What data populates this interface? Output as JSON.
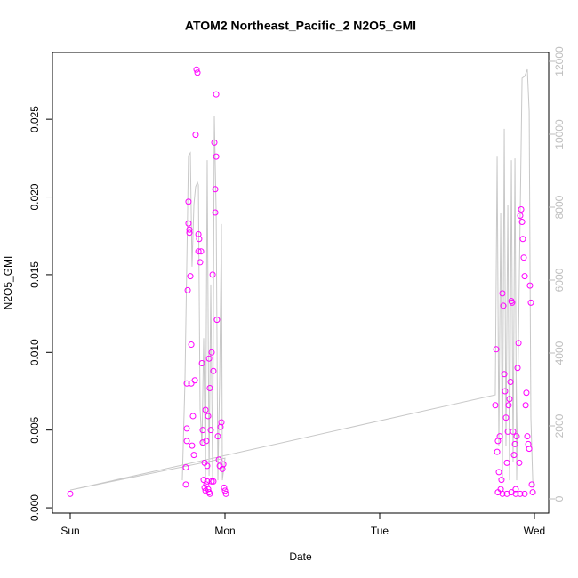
{
  "chart_data": {
    "type": "scatter",
    "title": "ATOM2 Northeast_Pacific_2 N2O5_GMI",
    "xlabel": "Date",
    "ylabel": "N2O5_GMI",
    "xlim": [
      -0.115,
      3.092
    ],
    "xticks": [
      {
        "value": 0,
        "label": "Sun"
      },
      {
        "value": 1,
        "label": "Mon"
      },
      {
        "value": 2,
        "label": "Tue"
      },
      {
        "value": 3,
        "label": "Wed"
      }
    ],
    "ylim": [
      -0.00034,
      0.0293
    ],
    "yticks": [
      {
        "value": 0,
        "label": "0.000"
      },
      {
        "value": 0.005,
        "label": "0.005"
      },
      {
        "value": 0.01,
        "label": "0.010"
      },
      {
        "value": 0.015,
        "label": "0.015"
      },
      {
        "value": 0.02,
        "label": "0.020"
      },
      {
        "value": 0.025,
        "label": "0.025"
      }
    ],
    "y2lim": [
      -390,
      12244
    ],
    "y2ticks": [
      0,
      2000,
      4000,
      6000,
      8000,
      10000,
      12000
    ],
    "y2color": "#bebebe",
    "series": [
      {
        "type": "scatter",
        "color": "#ff00ff",
        "x": [
          0,
          0.747,
          0.747,
          0.753,
          0.753,
          0.753,
          0.759,
          0.764,
          0.764,
          0.77,
          0.77,
          0.776,
          0.782,
          0.782,
          0.787,
          0.793,
          0.799,
          0.805,
          0.81,
          0.816,
          0.822,
          0.828,
          0.828,
          0.833,
          0.839,
          0.845,
          0.851,
          0.856,
          0.856,
          0.862,
          0.868,
          0.874,
          0.879,
          0.885,
          0.891,
          0.897,
          0.902,
          0.908,
          0.914,
          0.92,
          0.925,
          0.931,
          0.937,
          0.937,
          0.943,
          0.943,
          0.948,
          0.954,
          0.96,
          0.966,
          0.971,
          0.977,
          0.983,
          0.989,
          0.994,
          1.0,
          1.006,
          0.868,
          0.874,
          0.879,
          0.885,
          0.891,
          0.897,
          0.902,
          0.914,
          0.925,
          2.747,
          2.753,
          2.759,
          2.764,
          2.77,
          2.776,
          2.782,
          2.787,
          2.793,
          2.799,
          2.805,
          2.81,
          2.816,
          2.822,
          2.828,
          2.833,
          2.839,
          2.845,
          2.851,
          2.856,
          2.862,
          2.868,
          2.874,
          2.879,
          2.885,
          2.891,
          2.897,
          2.902,
          2.908,
          2.914,
          2.92,
          2.925,
          2.931,
          2.937,
          2.943,
          2.948,
          2.954,
          2.96,
          2.966,
          2.971,
          2.977,
          2.983,
          2.989,
          2.764,
          2.793,
          2.822,
          2.851,
          2.879,
          2.908,
          2.937
        ],
        "values": [
          0.0009,
          0.0015,
          0.0026,
          0.0043,
          0.0051,
          0.008,
          0.014,
          0.0197,
          0.0183,
          0.0177,
          0.0179,
          0.0149,
          0.0105,
          0.008,
          0.004,
          0.0059,
          0.0034,
          0.0082,
          0.024,
          0.0282,
          0.028,
          0.0176,
          0.0165,
          0.0173,
          0.0158,
          0.0165,
          0.0093,
          0.0042,
          0.005,
          0.0018,
          0.0029,
          0.0063,
          0.0043,
          0.0027,
          0.0059,
          0.0096,
          0.0077,
          0.005,
          0.01,
          0.015,
          0.0088,
          0.0235,
          0.019,
          0.0205,
          0.0266,
          0.0226,
          0.0121,
          0.0046,
          0.0031,
          0.0027,
          0.0052,
          0.0055,
          0.0025,
          0.0028,
          0.0013,
          0.0011,
          0.0009,
          0.0013,
          0.0011,
          0.0015,
          0.0017,
          0.0012,
          0.001,
          0.0009,
          0.0017,
          0.0017,
          0.0066,
          0.0102,
          0.0036,
          0.0043,
          0.0023,
          0.0046,
          0.0012,
          0.0018,
          0.0138,
          0.013,
          0.0086,
          0.0075,
          0.0058,
          0.0029,
          0.0049,
          0.0066,
          0.007,
          0.0081,
          0.0133,
          0.0132,
          0.0049,
          0.0034,
          0.0041,
          0.0012,
          0.0046,
          0.009,
          0.0106,
          0.0029,
          0.0188,
          0.0192,
          0.0184,
          0.0173,
          0.0161,
          0.0149,
          0.0066,
          0.0074,
          0.0046,
          0.0041,
          0.0038,
          0.0143,
          0.0132,
          0.0015,
          0.001,
          0.001,
          0.0009,
          0.0009,
          0.001,
          0.0009,
          0.0009,
          0.0009
        ]
      },
      {
        "type": "line",
        "axis": "y2",
        "color": "#c8c8c8",
        "x": [
          0.724,
          0.741,
          0.764,
          0.776,
          0.787,
          0.799,
          0.81,
          0.822,
          0.828,
          0.839,
          0.851,
          0.862,
          0.874,
          0.885,
          0.897,
          0.908,
          0.92,
          0.931,
          0.943,
          0.954,
          0.966,
          0.977,
          0.983,
          1.0,
          0,
          2.747,
          2.759,
          2.77,
          2.782,
          2.793,
          2.805,
          2.816,
          2.828,
          2.839,
          2.851,
          2.862,
          2.874,
          2.885,
          2.897,
          2.908,
          2.92,
          2.937,
          2.954,
          2.966,
          2.977,
          2.989,
          3.0
        ],
        "values": [
          510,
          3200,
          9410,
          9490,
          6370,
          8070,
          8560,
          8680,
          8610,
          2460,
          1460,
          4410,
          510,
          9290,
          630,
          5880,
          510,
          10510,
          7830,
          510,
          3440,
          7540,
          510,
          1120,
          240,
          2850,
          9410,
          1460,
          7830,
          510,
          10150,
          1460,
          8070,
          510,
          9290,
          1000,
          9340,
          510,
          4410,
          7830,
          11540,
          11590,
          11780,
          10630,
          2220,
          510,
          150
        ]
      }
    ]
  }
}
